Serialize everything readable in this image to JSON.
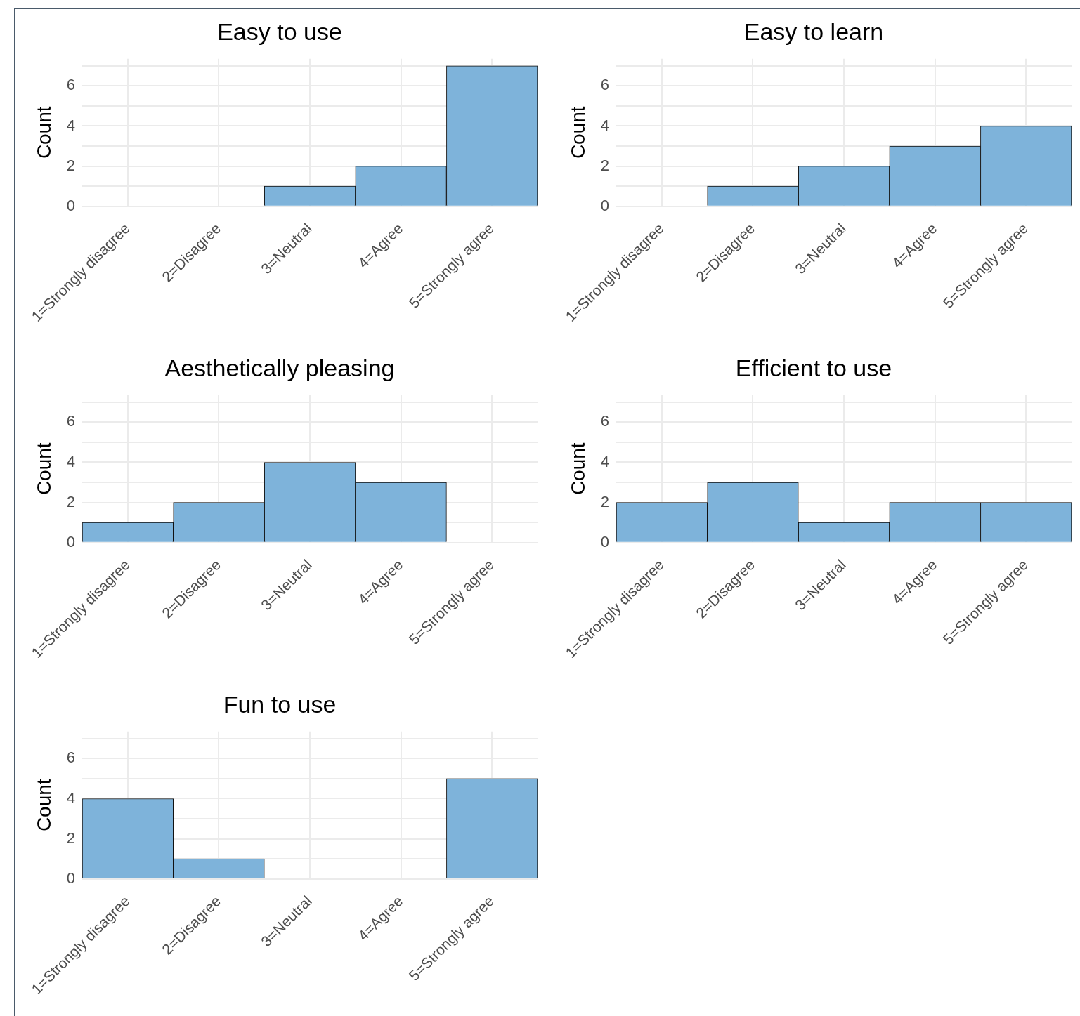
{
  "chart_data": [
    {
      "type": "bar",
      "title": "Easy to use",
      "ylabel": "Count",
      "categories": [
        "1=Strongly disagree",
        "2=Disagree",
        "3=Neutral",
        "4=Agree",
        "5=Strongly agree"
      ],
      "values": [
        0,
        0,
        1,
        2,
        7
      ],
      "color": "#7eb3da",
      "ylim": [
        0,
        7.35
      ],
      "yticks": [
        0,
        {
          "value": 1,
          "label": null
        },
        2,
        {
          "value": 3,
          "label": null
        },
        4,
        {
          "value": 5,
          "label": null
        },
        6,
        {
          "value": 7,
          "label": null
        }
      ],
      "grid": true,
      "legend": false
    },
    {
      "type": "bar",
      "title": "Easy to learn",
      "ylabel": "Count",
      "categories": [
        "1=Strongly disagree",
        "2=Disagree",
        "3=Neutral",
        "4=Agree",
        "5=Strongly agree"
      ],
      "values": [
        0,
        1,
        2,
        3,
        4
      ],
      "color": "#7eb3da",
      "ylim": [
        0,
        7.35
      ],
      "yticks": [
        0,
        {
          "value": 1,
          "label": null
        },
        2,
        {
          "value": 3,
          "label": null
        },
        4,
        {
          "value": 5,
          "label": null
        },
        6,
        {
          "value": 7,
          "label": null
        }
      ],
      "grid": true,
      "legend": false
    },
    {
      "type": "bar",
      "title": "Aesthetically pleasing",
      "ylabel": "Count",
      "categories": [
        "1=Strongly disagree",
        "2=Disagree",
        "3=Neutral",
        "4=Agree",
        "5=Strongly agree"
      ],
      "values": [
        1,
        2,
        4,
        3,
        0
      ],
      "color": "#7eb3da",
      "ylim": [
        0,
        7.35
      ],
      "yticks": [
        0,
        {
          "value": 1,
          "label": null
        },
        2,
        {
          "value": 3,
          "label": null
        },
        4,
        {
          "value": 5,
          "label": null
        },
        6,
        {
          "value": 7,
          "label": null
        }
      ],
      "grid": true,
      "legend": false
    },
    {
      "type": "bar",
      "title": "Efficient to use",
      "ylabel": "Count",
      "categories": [
        "1=Strongly disagree",
        "2=Disagree",
        "3=Neutral",
        "4=Agree",
        "5=Strongly agree"
      ],
      "values": [
        2,
        3,
        1,
        2,
        2
      ],
      "color": "#7eb3da",
      "ylim": [
        0,
        7.35
      ],
      "yticks": [
        0,
        {
          "value": 1,
          "label": null
        },
        2,
        {
          "value": 3,
          "label": null
        },
        4,
        {
          "value": 5,
          "label": null
        },
        6,
        {
          "value": 7,
          "label": null
        }
      ],
      "grid": true,
      "legend": false
    },
    {
      "type": "bar",
      "title": "Fun to use",
      "ylabel": "Count",
      "categories": [
        "1=Strongly disagree",
        "2=Disagree",
        "3=Neutral",
        "4=Agree",
        "5=Strongly agree"
      ],
      "values": [
        4,
        1,
        0,
        0,
        5
      ],
      "color": "#7eb3da",
      "ylim": [
        0,
        7.35
      ],
      "yticks": [
        0,
        {
          "value": 1,
          "label": null
        },
        2,
        {
          "value": 3,
          "label": null
        },
        4,
        {
          "value": 5,
          "label": null
        },
        6,
        {
          "value": 7,
          "label": null
        }
      ],
      "grid": true,
      "legend": false
    }
  ]
}
